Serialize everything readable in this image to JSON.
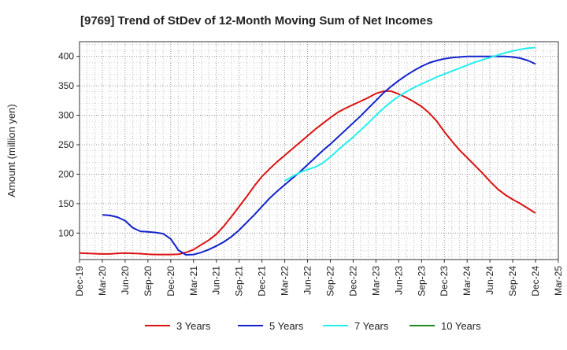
{
  "chart_data": {
    "type": "line",
    "title": "[9769]  Trend of StDev of 12-Month Moving Sum of Net Incomes",
    "xlabel": "",
    "ylabel": "Amount (million yen)",
    "x_ticks": [
      "Dec-19",
      "Mar-20",
      "Jun-20",
      "Sep-20",
      "Dec-20",
      "Mar-21",
      "Jun-21",
      "Sep-21",
      "Dec-21",
      "Mar-22",
      "Jun-22",
      "Sep-22",
      "Dec-22",
      "Mar-23",
      "Jun-23",
      "Sep-23",
      "Dec-23",
      "Mar-24",
      "Jun-24",
      "Sep-24",
      "Dec-24",
      "Mar-25"
    ],
    "y_ticks": [
      100,
      150,
      200,
      250,
      300,
      350,
      400
    ],
    "ylim": [
      55,
      425
    ],
    "grid": true,
    "legend_position": "bottom",
    "series": [
      {
        "name": "3 Years",
        "color": "#dd1111",
        "points": [
          [
            "Dec-19",
            66
          ],
          [
            "Jan-20",
            65.5
          ],
          [
            "Feb-20",
            65
          ],
          [
            "Mar-20",
            64.5
          ],
          [
            "Apr-20",
            64.5
          ],
          [
            "May-20",
            65.5
          ],
          [
            "Jun-20",
            66
          ],
          [
            "Jul-20",
            65.5
          ],
          [
            "Aug-20",
            65
          ],
          [
            "Sep-20",
            64
          ],
          [
            "Oct-20",
            63.5
          ],
          [
            "Nov-20",
            63.5
          ],
          [
            "Dec-20",
            63.5
          ],
          [
            "Jan-21",
            64
          ],
          [
            "Feb-21",
            67
          ],
          [
            "Mar-21",
            72
          ],
          [
            "Apr-21",
            80
          ],
          [
            "May-21",
            88
          ],
          [
            "Jun-21",
            98
          ],
          [
            "Jul-21",
            112
          ],
          [
            "Aug-21",
            128
          ],
          [
            "Sep-21",
            145
          ],
          [
            "Oct-21",
            162
          ],
          [
            "Nov-21",
            180
          ],
          [
            "Dec-21",
            196
          ],
          [
            "Jan-22",
            209
          ],
          [
            "Feb-22",
            221
          ],
          [
            "Mar-22",
            232
          ],
          [
            "Apr-22",
            243
          ],
          [
            "May-22",
            254
          ],
          [
            "Jun-22",
            265
          ],
          [
            "Jul-22",
            276
          ],
          [
            "Aug-22",
            286
          ],
          [
            "Sep-22",
            296
          ],
          [
            "Oct-22",
            305
          ],
          [
            "Nov-22",
            312
          ],
          [
            "Dec-22",
            318
          ],
          [
            "Jan-23",
            324
          ],
          [
            "Feb-23",
            330
          ],
          [
            "Mar-23",
            337
          ],
          [
            "Apr-23",
            341
          ],
          [
            "May-23",
            341
          ],
          [
            "Jun-23",
            336
          ],
          [
            "Jul-23",
            330
          ],
          [
            "Aug-23",
            323
          ],
          [
            "Sep-23",
            315
          ],
          [
            "Oct-23",
            304
          ],
          [
            "Nov-23",
            290
          ],
          [
            "Dec-23",
            272
          ],
          [
            "Jan-24",
            256
          ],
          [
            "Feb-24",
            241
          ],
          [
            "Mar-24",
            228
          ],
          [
            "Apr-24",
            215
          ],
          [
            "May-24",
            202
          ],
          [
            "Jun-24",
            188
          ],
          [
            "Jul-24",
            175
          ],
          [
            "Aug-24",
            165
          ],
          [
            "Sep-24",
            157
          ],
          [
            "Oct-24",
            150
          ],
          [
            "Nov-24",
            142
          ],
          [
            "Dec-24",
            134
          ]
        ]
      },
      {
        "name": "5 Years",
        "color": "#1122cc",
        "points": [
          [
            "Mar-20",
            131
          ],
          [
            "Apr-20",
            130
          ],
          [
            "May-20",
            127
          ],
          [
            "Jun-20",
            121
          ],
          [
            "Jul-20",
            109
          ],
          [
            "Aug-20",
            103
          ],
          [
            "Sep-20",
            102
          ],
          [
            "Oct-20",
            101
          ],
          [
            "Nov-20",
            99
          ],
          [
            "Dec-20",
            90
          ],
          [
            "Jan-21",
            71
          ],
          [
            "Feb-21",
            63
          ],
          [
            "Mar-21",
            63.5
          ],
          [
            "Apr-21",
            67
          ],
          [
            "May-21",
            72
          ],
          [
            "Jun-21",
            78
          ],
          [
            "Jul-21",
            85
          ],
          [
            "Aug-21",
            94
          ],
          [
            "Sep-21",
            105
          ],
          [
            "Oct-21",
            118
          ],
          [
            "Nov-21",
            131
          ],
          [
            "Dec-21",
            145
          ],
          [
            "Jan-22",
            159
          ],
          [
            "Feb-22",
            171
          ],
          [
            "Mar-22",
            182
          ],
          [
            "Apr-22",
            193
          ],
          [
            "May-22",
            204
          ],
          [
            "Jun-22",
            216
          ],
          [
            "Jul-22",
            228
          ],
          [
            "Aug-22",
            240
          ],
          [
            "Sep-22",
            251
          ],
          [
            "Oct-22",
            263
          ],
          [
            "Nov-22",
            275
          ],
          [
            "Dec-22",
            287
          ],
          [
            "Jan-23",
            299
          ],
          [
            "Feb-23",
            312
          ],
          [
            "Mar-23",
            325
          ],
          [
            "Apr-23",
            338
          ],
          [
            "May-23",
            349
          ],
          [
            "Jun-23",
            359
          ],
          [
            "Jul-23",
            368
          ],
          [
            "Aug-23",
            376
          ],
          [
            "Sep-23",
            383
          ],
          [
            "Oct-23",
            389
          ],
          [
            "Nov-23",
            393
          ],
          [
            "Dec-23",
            396
          ],
          [
            "Jan-24",
            398
          ],
          [
            "Feb-24",
            399
          ],
          [
            "Mar-24",
            400
          ],
          [
            "Apr-24",
            400
          ],
          [
            "May-24",
            400
          ],
          [
            "Jun-24",
            400
          ],
          [
            "Jul-24",
            400
          ],
          [
            "Aug-24",
            400
          ],
          [
            "Sep-24",
            399
          ],
          [
            "Oct-24",
            397
          ],
          [
            "Nov-24",
            393
          ],
          [
            "Dec-24",
            387
          ]
        ]
      },
      {
        "name": "7 Years",
        "color": "#22eeee",
        "points": [
          [
            "Mar-22",
            189
          ],
          [
            "Apr-22",
            196
          ],
          [
            "May-22",
            203
          ],
          [
            "Jun-22",
            208
          ],
          [
            "Jul-22",
            212
          ],
          [
            "Aug-22",
            219
          ],
          [
            "Sep-22",
            229
          ],
          [
            "Oct-22",
            241
          ],
          [
            "Nov-22",
            252
          ],
          [
            "Dec-22",
            263
          ],
          [
            "Jan-23",
            275
          ],
          [
            "Feb-23",
            287
          ],
          [
            "Mar-23",
            300
          ],
          [
            "Apr-23",
            312
          ],
          [
            "May-23",
            323
          ],
          [
            "Jun-23",
            332
          ],
          [
            "Jul-23",
            340
          ],
          [
            "Aug-23",
            347
          ],
          [
            "Sep-23",
            353
          ],
          [
            "Oct-23",
            359
          ],
          [
            "Nov-23",
            365
          ],
          [
            "Dec-23",
            370
          ],
          [
            "Jan-24",
            375
          ],
          [
            "Feb-24",
            380
          ],
          [
            "Mar-24",
            385
          ],
          [
            "Apr-24",
            390
          ],
          [
            "May-24",
            394
          ],
          [
            "Jun-24",
            398
          ],
          [
            "Jul-24",
            402
          ],
          [
            "Aug-24",
            406
          ],
          [
            "Sep-24",
            409
          ],
          [
            "Oct-24",
            412
          ],
          [
            "Nov-24",
            414
          ],
          [
            "Dec-24",
            415
          ]
        ]
      },
      {
        "name": "10 Years",
        "color": "#228822",
        "points": []
      }
    ]
  }
}
